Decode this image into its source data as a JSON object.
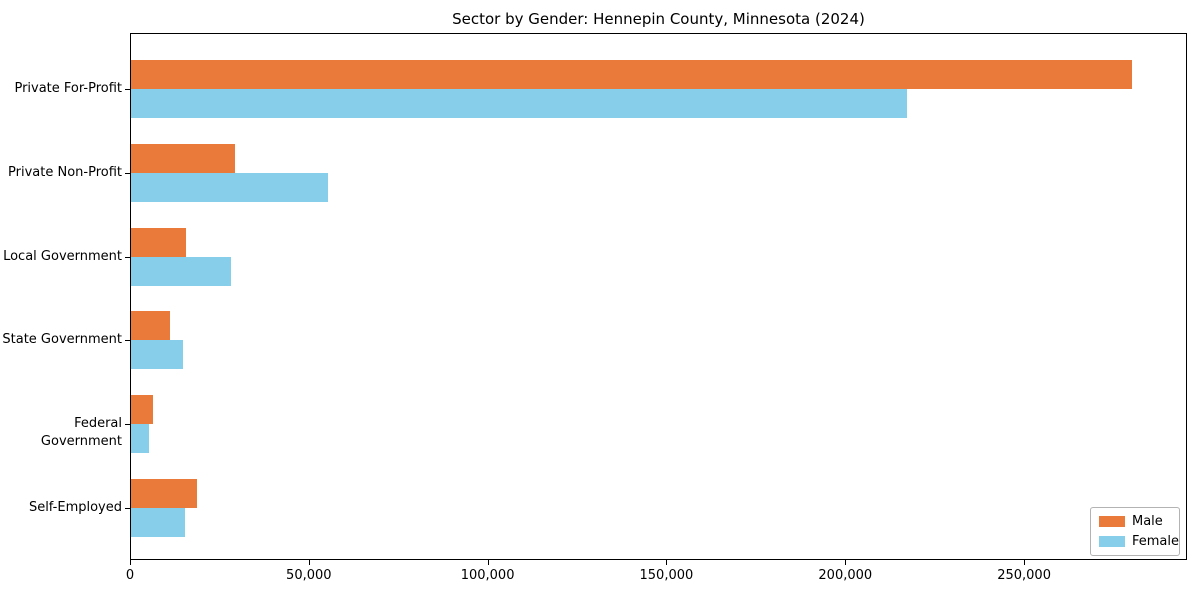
{
  "chart_data": {
    "type": "bar",
    "orientation": "horizontal",
    "title": "Sector by Gender: Hennepin County, Minnesota (2024)",
    "categories": [
      "Private For-Profit",
      "Private Non-Profit",
      "Local Government",
      "State Government",
      "Federal Government",
      "Self-Employed"
    ],
    "series": [
      {
        "name": "Male",
        "color": "#E97A3A",
        "values": [
          280000,
          29000,
          15500,
          11000,
          6000,
          18500
        ]
      },
      {
        "name": "Female",
        "color": "#87CEEB",
        "values": [
          217000,
          55000,
          28000,
          14500,
          5000,
          15000
        ]
      }
    ],
    "xlim": [
      0,
      295000
    ],
    "xticks": {
      "values": [
        0,
        50000,
        100000,
        150000,
        200000,
        250000
      ],
      "labels": [
        "0",
        "50,000",
        "100,000",
        "150,000",
        "200,000",
        "250,000"
      ]
    },
    "grid": false,
    "legend": {
      "position": "lower right",
      "entries": [
        "Male",
        "Female"
      ]
    }
  }
}
